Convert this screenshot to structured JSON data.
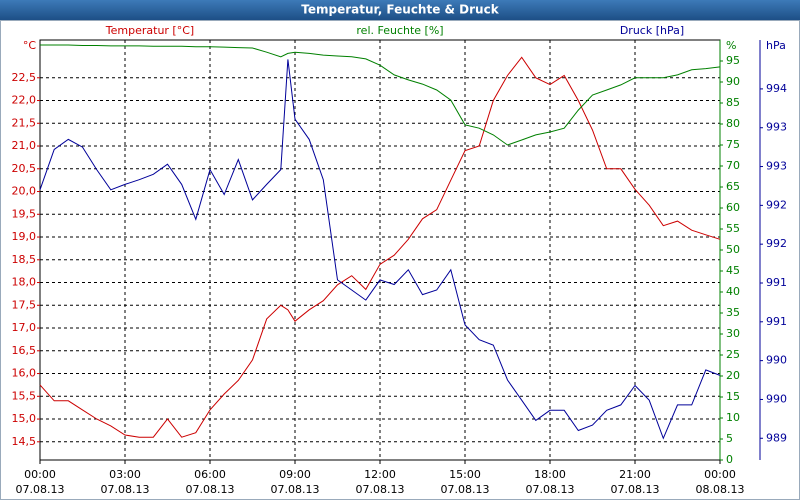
{
  "chart_data": {
    "type": "line",
    "title": "Temperatur, Feuchte & Druck",
    "x": [
      0,
      0.5,
      1,
      1.5,
      2,
      2.5,
      3,
      3.5,
      4,
      4.5,
      5,
      5.5,
      6,
      6.5,
      7,
      7.5,
      8,
      8.5,
      8.75,
      9,
      9.5,
      10,
      10.5,
      11,
      11.5,
      12,
      12.5,
      13,
      13.5,
      14,
      14.5,
      15,
      15.5,
      16,
      16.5,
      17,
      17.5,
      18,
      18.5,
      19,
      19.5,
      20,
      20.5,
      21,
      21.5,
      22,
      22.5,
      23,
      23.5,
      24
    ],
    "xlim": [
      0,
      24
    ],
    "xticks": [
      {
        "value": 0,
        "label": "00:00",
        "date": "07.08.13"
      },
      {
        "value": 3,
        "label": "03:00",
        "date": "07.08.13"
      },
      {
        "value": 6,
        "label": "06:00",
        "date": "07.08.13"
      },
      {
        "value": 9,
        "label": "09:00",
        "date": "07.08.13"
      },
      {
        "value": 12,
        "label": "12:00",
        "date": "07.08.13"
      },
      {
        "value": 15,
        "label": "15:00",
        "date": "07.08.13"
      },
      {
        "value": 18,
        "label": "18:00",
        "date": "07.08.13"
      },
      {
        "value": 21,
        "label": "21:00",
        "date": "07.08.13"
      },
      {
        "value": 24,
        "label": "00:00",
        "date": "08.08.13"
      }
    ],
    "axes": [
      {
        "name": "Temperatur [°C]",
        "unit": "°C",
        "color": "#cc0000",
        "side": "left",
        "lim": [
          14.1,
          23.33
        ],
        "ticks": [
          {
            "value": 14.5,
            "label": "14,5"
          },
          {
            "value": 15,
            "label": "15,0"
          },
          {
            "value": 15.5,
            "label": "15,5"
          },
          {
            "value": 16,
            "label": "16,0"
          },
          {
            "value": 16.5,
            "label": "16,5"
          },
          {
            "value": 17,
            "label": "17,0"
          },
          {
            "value": 17.5,
            "label": "17,5"
          },
          {
            "value": 18,
            "label": "18,0"
          },
          {
            "value": 18.5,
            "label": "18,5"
          },
          {
            "value": 19,
            "label": "19,0"
          },
          {
            "value": 19.5,
            "label": "19,5"
          },
          {
            "value": 20,
            "label": "20,0"
          },
          {
            "value": 20.5,
            "label": "20,5"
          },
          {
            "value": 21,
            "label": "21,0"
          },
          {
            "value": 21.5,
            "label": "21,5"
          },
          {
            "value": 22,
            "label": "22,0"
          },
          {
            "value": 22.5,
            "label": "22,5"
          }
        ]
      },
      {
        "name": "rel. Feuchte [%]",
        "unit": "%",
        "color": "#008000",
        "side": "right",
        "lim": [
          0,
          100
        ],
        "ticks": [
          0,
          5,
          10,
          15,
          20,
          25,
          30,
          35,
          40,
          45,
          50,
          55,
          60,
          65,
          70,
          75,
          80,
          85,
          90,
          95
        ]
      },
      {
        "name": "Druck [hPa]",
        "unit": "hPa",
        "color": "#000099",
        "side": "right2",
        "lim": [
          988.92,
          994.33
        ],
        "ticks": [
          {
            "value": 989.2,
            "label": "989"
          },
          {
            "value": 989.7,
            "label": "990"
          },
          {
            "value": 990.2,
            "label": "990"
          },
          {
            "value": 990.7,
            "label": "991"
          },
          {
            "value": 991.2,
            "label": "991"
          },
          {
            "value": 991.7,
            "label": "992"
          },
          {
            "value": 992.2,
            "label": "992"
          },
          {
            "value": 992.7,
            "label": "993"
          },
          {
            "value": 993.2,
            "label": "993"
          },
          {
            "value": 993.7,
            "label": "994"
          }
        ]
      }
    ],
    "grid": true,
    "series": [
      {
        "name": "Temperatur",
        "color": "#cc0000",
        "axis": 0,
        "values": [
          15.75,
          15.4,
          15.4,
          15.2,
          15.0,
          14.85,
          14.65,
          14.6,
          14.6,
          15.0,
          14.6,
          14.7,
          15.2,
          15.55,
          15.85,
          16.3,
          17.2,
          17.5,
          17.4,
          17.15,
          17.4,
          17.6,
          17.95,
          18.15,
          17.85,
          18.4,
          18.6,
          18.95,
          19.4,
          19.6,
          20.25,
          20.9,
          21.0,
          22.0,
          22.55,
          22.95,
          22.5,
          22.35,
          22.55,
          22.0,
          21.35,
          20.5,
          20.5,
          20.05,
          19.7,
          19.25,
          19.35,
          19.15,
          19.05,
          18.95
        ]
      },
      {
        "name": "Feuchte",
        "color": "#008000",
        "axis": 1,
        "values": [
          98.8,
          98.8,
          98.8,
          98.7,
          98.7,
          98.6,
          98.6,
          98.6,
          98.5,
          98.5,
          98.5,
          98.4,
          98.4,
          98.3,
          98.2,
          98.1,
          97.1,
          96.0,
          96.8,
          97.1,
          96.8,
          96.4,
          96.2,
          96.0,
          95.5,
          94.0,
          91.7,
          90.5,
          89.5,
          88.1,
          85.7,
          79.8,
          79.0,
          77.4,
          75.0,
          76.2,
          77.4,
          78.1,
          79.0,
          83.3,
          86.9,
          88.1,
          89.3,
          91.0,
          91.0,
          91.0,
          91.7,
          92.9,
          93.2,
          93.6
        ]
      },
      {
        "name": "Druck",
        "color": "#000099",
        "axis": 2,
        "values": [
          992.4,
          992.92,
          993.05,
          992.95,
          992.66,
          992.4,
          992.47,
          992.53,
          992.6,
          992.73,
          992.47,
          992.02,
          992.66,
          992.34,
          992.79,
          992.27,
          992.47,
          992.66,
          994.08,
          993.31,
          993.05,
          992.53,
          991.24,
          991.11,
          990.98,
          991.24,
          991.18,
          991.37,
          991.05,
          991.11,
          991.37,
          990.66,
          990.47,
          990.4,
          989.95,
          989.69,
          989.43,
          989.56,
          989.56,
          989.3,
          989.37,
          989.56,
          989.63,
          989.88,
          989.69,
          989.2,
          989.63,
          989.63,
          990.08,
          990.01
        ]
      }
    ]
  }
}
